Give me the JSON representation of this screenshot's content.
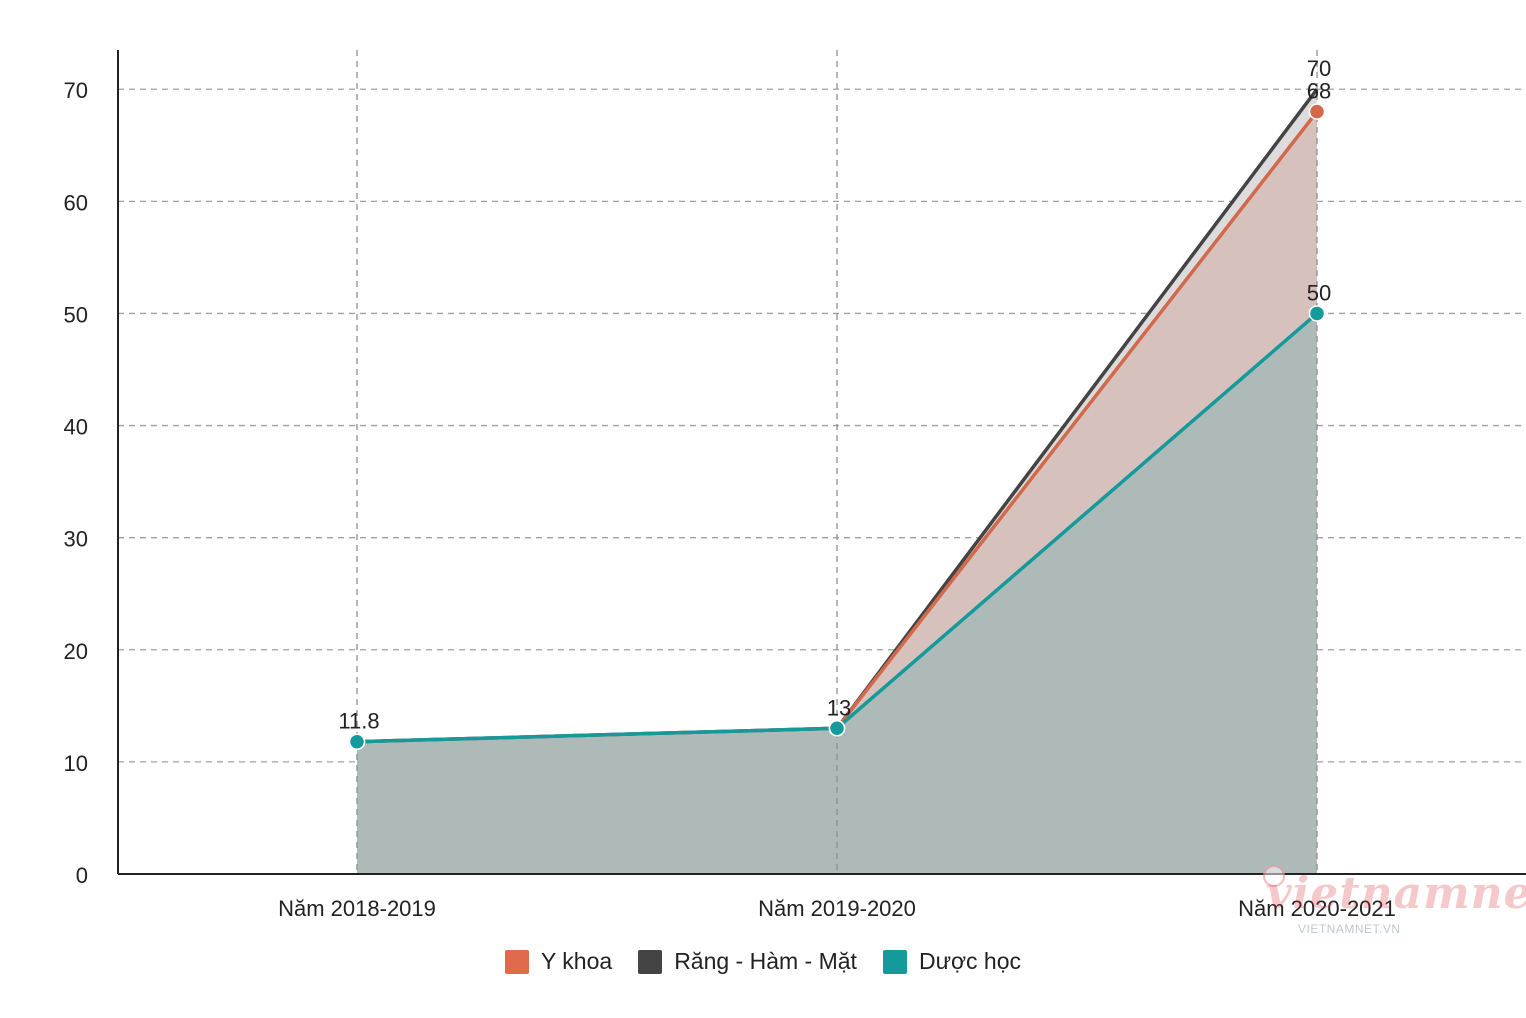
{
  "chart_data": {
    "type": "area",
    "categories": [
      "Năm 2018-2019",
      "Năm 2019-2020",
      "Năm 2020-2021"
    ],
    "series": [
      {
        "name": "Răng - Hàm - Mặt",
        "values": [
          11.8,
          13,
          70
        ],
        "color": "#444444",
        "fill": "#dcdcdc"
      },
      {
        "name": "Y khoa",
        "values": [
          11.8,
          13,
          68
        ],
        "color": "#d2694b",
        "fill": "#d6c1bc"
      },
      {
        "name": "Dược học",
        "values": [
          11.8,
          13,
          50
        ],
        "color": "#159a9c",
        "fill": "#aebab7"
      }
    ],
    "data_labels": [
      {
        "category_index": 0,
        "text": "11.8",
        "value": 11.8
      },
      {
        "category_index": 1,
        "text": "13",
        "value": 13
      },
      {
        "category_index": 2,
        "text": "70",
        "value": 70
      },
      {
        "category_index": 2,
        "text": "68",
        "value": 68
      },
      {
        "category_index": 2,
        "text": "50",
        "value": 50
      }
    ],
    "yticks": [
      0,
      10,
      20,
      30,
      40,
      50,
      60,
      70
    ],
    "ylim": [
      0,
      73.5
    ],
    "grid": true,
    "legend_position": "bottom"
  },
  "legend": [
    {
      "label": "Y khoa",
      "color": "#e06a4c"
    },
    {
      "label": "Răng - Hàm - Mặt",
      "color": "#444444"
    },
    {
      "label": "Dược học",
      "color": "#159a9c"
    }
  ],
  "watermark": {
    "text": "vietnamnet",
    "subtext": "VIETNAMNET.VN"
  }
}
